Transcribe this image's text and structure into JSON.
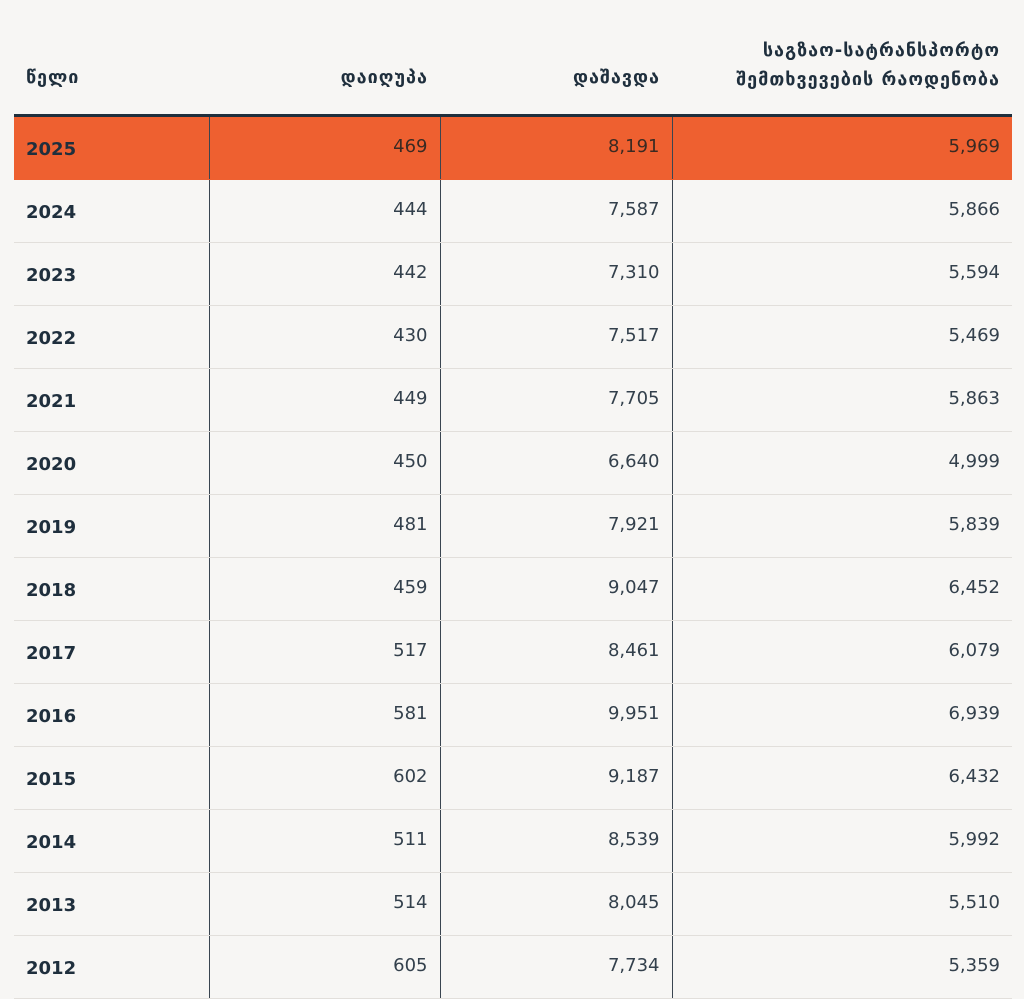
{
  "chart_data": {
    "type": "table",
    "columns": [
      "წელი",
      "დაიღუპა",
      "დაშავდა",
      "საგზაო-სატრანსპორტო შემთხვევების რაოდენობა"
    ],
    "header_lines": {
      "year": "წელი",
      "deaths": "დაიღუპა",
      "injured": "დაშავდა",
      "accidents_line1": "საგზაო-სატრანსპორტო",
      "accidents_line2": "შემთხვევების რაოდენობა"
    },
    "highlight_color": "#ee6030",
    "rows": [
      {
        "year": "2025",
        "deaths": "469",
        "injured": "8,191",
        "accidents": "5,969"
      },
      {
        "year": "2024",
        "deaths": "444",
        "injured": "7,587",
        "accidents": "5,866"
      },
      {
        "year": "2023",
        "deaths": "442",
        "injured": "7,310",
        "accidents": "5,594"
      },
      {
        "year": "2022",
        "deaths": "430",
        "injured": "7,517",
        "accidents": "5,469"
      },
      {
        "year": "2021",
        "deaths": "449",
        "injured": "7,705",
        "accidents": "5,863"
      },
      {
        "year": "2020",
        "deaths": "450",
        "injured": "6,640",
        "accidents": "4,999"
      },
      {
        "year": "2019",
        "deaths": "481",
        "injured": "7,921",
        "accidents": "5,839"
      },
      {
        "year": "2018",
        "deaths": "459",
        "injured": "9,047",
        "accidents": "6,452"
      },
      {
        "year": "2017",
        "deaths": "517",
        "injured": "8,461",
        "accidents": "6,079"
      },
      {
        "year": "2016",
        "deaths": "581",
        "injured": "9,951",
        "accidents": "6,939"
      },
      {
        "year": "2015",
        "deaths": "602",
        "injured": "9,187",
        "accidents": "6,432"
      },
      {
        "year": "2014",
        "deaths": "511",
        "injured": "8,539",
        "accidents": "5,992"
      },
      {
        "year": "2013",
        "deaths": "514",
        "injured": "8,045",
        "accidents": "5,510"
      },
      {
        "year": "2012",
        "deaths": "605",
        "injured": "7,734",
        "accidents": "5,359"
      }
    ]
  }
}
